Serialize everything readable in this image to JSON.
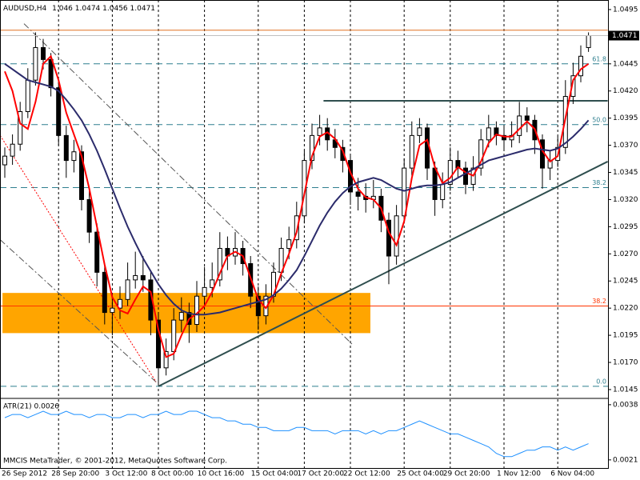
{
  "chart_data": {
    "type": "candlestick",
    "title": "AUDUSD,H4",
    "footer": "MMCIS MetaTrader, © 2001-2012, MetaQuotes Software Corp.",
    "categories": [
      "26 Sep 2012",
      null,
      null,
      null,
      null,
      null,
      null,
      "28 Sep 20:00",
      null,
      null,
      null,
      null,
      null,
      null,
      "3 Oct 12:00",
      null,
      null,
      null,
      null,
      null,
      "8 Oct 00:00",
      null,
      null,
      null,
      null,
      null,
      "10 Oct 16:00",
      null,
      null,
      null,
      null,
      null,
      null,
      "15 Oct 04:00",
      null,
      null,
      null,
      null,
      null,
      "17 Oct 20:00",
      null,
      null,
      null,
      null,
      null,
      "22 Oct 12:00",
      null,
      null,
      null,
      null,
      null,
      null,
      "25 Oct 04:00",
      null,
      null,
      null,
      null,
      null,
      "29 Oct 20:00",
      null,
      null,
      null,
      null,
      null,
      null,
      "1 Nov 12:00",
      null,
      null,
      null,
      null,
      null,
      null,
      "6 Nov 04:00",
      null,
      null,
      null,
      null
    ],
    "open": [
      1.0352,
      1.036,
      1.0371,
      1.0401,
      1.043,
      1.046,
      1.0449,
      1.0423,
      1.0379,
      1.0356,
      1.0364,
      1.032,
      1.029,
      1.0253,
      1.0216,
      1.022,
      1.0228,
      1.0246,
      1.025,
      1.0246,
      1.0209,
      1.0165,
      1.018,
      1.0209,
      1.0216,
      1.0205,
      1.0231,
      1.0239,
      1.0246,
      1.0275,
      1.0268,
      1.0275,
      1.0261,
      1.0231,
      1.0213,
      1.0231,
      1.0253,
      1.0275,
      1.0283,
      1.0305,
      1.0356,
      1.0379,
      1.0386,
      1.0375,
      1.0368,
      1.0356,
      1.0327,
      1.0323,
      1.032,
      1.0323,
      1.0301,
      1.0268,
      1.0305,
      1.0349,
      1.0379,
      1.0386,
      1.0349,
      1.032,
      1.0334,
      1.0356,
      1.0349,
      1.0334,
      1.0349,
      1.0375,
      1.0386,
      1.0379,
      1.0375,
      1.0379,
      1.0397,
      1.0393,
      1.0375,
      1.0349,
      1.0356,
      1.0368,
      1.0415,
      1.0434,
      1.046
    ],
    "high": [
      1.0368,
      1.038,
      1.041,
      1.0441,
      1.0474,
      1.0468,
      1.0455,
      1.043,
      1.0388,
      1.0375,
      1.037,
      1.0328,
      1.0298,
      1.026,
      1.0232,
      1.024,
      1.0262,
      1.0272,
      1.0268,
      1.0255,
      1.0215,
      1.0192,
      1.022,
      1.023,
      1.0225,
      1.0245,
      1.0258,
      1.0262,
      1.029,
      1.0286,
      1.029,
      1.0282,
      1.0268,
      1.024,
      1.0242,
      1.0262,
      1.0285,
      1.0295,
      1.0318,
      1.0365,
      1.039,
      1.0398,
      1.0395,
      1.0385,
      1.0375,
      1.0362,
      1.034,
      1.0335,
      1.0338,
      1.033,
      1.0308,
      1.0315,
      1.0358,
      1.0392,
      1.0395,
      1.039,
      1.0355,
      1.0345,
      1.0368,
      1.0365,
      1.0355,
      1.036,
      1.0385,
      1.0398,
      1.0392,
      1.0388,
      1.0392,
      1.041,
      1.0405,
      1.0398,
      1.038,
      1.0365,
      1.0378,
      1.043,
      1.0446,
      1.0462,
      1.0474
    ],
    "low": [
      1.034,
      1.0352,
      1.0365,
      1.0395,
      1.0425,
      1.044,
      1.0415,
      1.037,
      1.034,
      1.0345,
      1.031,
      1.028,
      1.024,
      1.0205,
      1.0195,
      1.021,
      1.0222,
      1.0238,
      1.0235,
      1.0195,
      1.015,
      1.0158,
      1.0172,
      1.0198,
      1.0188,
      1.0198,
      1.0222,
      1.023,
      1.024,
      1.0255,
      1.026,
      1.025,
      1.022,
      1.02,
      1.0205,
      1.0225,
      1.0245,
      1.0265,
      1.0275,
      1.0298,
      1.0348,
      1.037,
      1.0365,
      1.0358,
      1.0345,
      1.0315,
      1.031,
      1.0308,
      1.0312,
      1.029,
      1.0242,
      1.026,
      1.0298,
      1.0342,
      1.0372,
      1.0338,
      1.0305,
      1.0312,
      1.0328,
      1.034,
      1.0325,
      1.0328,
      1.0342,
      1.0368,
      1.037,
      1.0365,
      1.0368,
      1.0372,
      1.0382,
      1.0362,
      1.033,
      1.0338,
      1.035,
      1.0362,
      1.0408,
      1.0428,
      1.0456
    ],
    "close": [
      1.036,
      1.0371,
      1.0401,
      1.043,
      1.046,
      1.0449,
      1.0423,
      1.0379,
      1.0356,
      1.0364,
      1.032,
      1.029,
      1.0253,
      1.0216,
      1.022,
      1.0228,
      1.0246,
      1.025,
      1.0246,
      1.0209,
      1.0165,
      1.018,
      1.0209,
      1.0216,
      1.0205,
      1.0231,
      1.0239,
      1.0246,
      1.0275,
      1.0268,
      1.0275,
      1.0261,
      1.0231,
      1.0213,
      1.0231,
      1.0253,
      1.0275,
      1.0283,
      1.0305,
      1.0356,
      1.0379,
      1.0386,
      1.0375,
      1.0368,
      1.0356,
      1.0327,
      1.0323,
      1.032,
      1.0323,
      1.0301,
      1.0268,
      1.0305,
      1.0349,
      1.0379,
      1.0386,
      1.0349,
      1.032,
      1.0334,
      1.0356,
      1.0349,
      1.0334,
      1.0349,
      1.0375,
      1.0386,
      1.0379,
      1.0375,
      1.0379,
      1.0397,
      1.0393,
      1.0375,
      1.0349,
      1.0356,
      1.0368,
      1.0415,
      1.0434,
      1.0452,
      1.0471
    ],
    "up_color": "#ffffff",
    "down_color": "#000000",
    "candle_color": "#000000",
    "overlays": [
      {
        "color": "#ff0000",
        "values": [
          1.0438,
          1.042,
          1.039,
          1.0385,
          1.041,
          1.0445,
          1.0452,
          1.043,
          1.04,
          1.038,
          1.036,
          1.033,
          1.0295,
          1.026,
          1.023,
          1.0218,
          1.0215,
          1.0228,
          1.024,
          1.0235,
          1.02,
          1.0175,
          1.0178,
          1.0195,
          1.021,
          1.0215,
          1.0222,
          1.0235,
          1.0252,
          1.0268,
          1.0272,
          1.0268,
          1.0248,
          1.0228,
          1.022,
          1.0232,
          1.0252,
          1.027,
          1.029,
          1.0325,
          1.036,
          1.0378,
          1.0382,
          1.0376,
          1.0365,
          1.0345,
          1.033,
          1.0322,
          1.032,
          1.0312,
          1.029,
          1.0278,
          1.03,
          1.034,
          1.037,
          1.0375,
          1.035,
          1.0335,
          1.034,
          1.035,
          1.0345,
          1.0342,
          1.0355,
          1.0372,
          1.038,
          1.0378,
          1.0378,
          1.0385,
          1.0392,
          1.0385,
          1.0365,
          1.0355,
          1.036,
          1.0395,
          1.043,
          1.044,
          1.0445
        ]
      },
      {
        "color": "#2b2b6b",
        "values": [
          1.0445,
          1.044,
          1.0435,
          1.043,
          1.0428,
          1.0426,
          1.0424,
          1.042,
          1.0412,
          1.0403,
          1.0393,
          1.038,
          1.0365,
          1.0348,
          1.033,
          1.0312,
          1.0295,
          1.028,
          1.0266,
          1.0254,
          1.0242,
          1.0232,
          1.0224,
          1.0218,
          1.0215,
          1.0214,
          1.0214,
          1.0215,
          1.0216,
          1.0218,
          1.022,
          1.0222,
          1.0224,
          1.0226,
          1.0228,
          1.0232,
          1.0238,
          1.0246,
          1.0255,
          1.0268,
          1.0282,
          1.0296,
          1.0308,
          1.0318,
          1.0326,
          1.0332,
          1.0336,
          1.0338,
          1.034,
          1.0338,
          1.0334,
          1.033,
          1.0328,
          1.033,
          1.0332,
          1.0333,
          1.0333,
          1.0334,
          1.0336,
          1.034,
          1.0344,
          1.0348,
          1.0352,
          1.0356,
          1.0358,
          1.036,
          1.0362,
          1.0364,
          1.0366,
          1.0367,
          1.0366,
          1.0365,
          1.0367,
          1.0372,
          1.0378,
          1.0385,
          1.0393
        ]
      }
    ],
    "ylim": [
      1.01376,
      1.05038
    ],
    "yticks": [
      1.0145,
      {
        "value": 1.017,
        "label": "1.0170"
      },
      1.0195,
      {
        "value": 1.022,
        "label": "1.0220"
      },
      1.0245,
      {
        "value": 1.027,
        "label": "1.0270"
      },
      1.0295,
      {
        "value": 1.032,
        "label": "1.0320"
      },
      1.0345,
      {
        "value": 1.037,
        "label": "1.0370"
      },
      1.0395,
      {
        "value": 1.042,
        "label": "1.0420"
      },
      1.0445,
      {
        "value": 1.047,
        "label": "1.0470"
      },
      1.0495
    ],
    "levels": [
      {
        "value": 1.0445,
        "label": "61.8",
        "color": "#2f7f8f",
        "style": "dash"
      },
      {
        "value": 1.0389,
        "label": "50.0",
        "color": "#2f7f8f",
        "style": "dash"
      },
      {
        "value": 1.0331,
        "label": "38.2",
        "color": "#2f7f8f",
        "style": "dash"
      },
      {
        "value": 1.0148,
        "label": "0.0",
        "color": "#2f7f8f",
        "style": "dash"
      },
      {
        "value": 1.0222,
        "label": "38.2",
        "color": "#ff3300",
        "style": "solid"
      }
    ],
    "rectangle": {
      "x": [
        -0.3,
        47.6
      ],
      "y": [
        1.0197,
        1.0234
      ],
      "color": "#ffa500"
    },
    "lines": [
      {
        "x": [
          20,
          78.5
        ],
        "y": [
          1.0148,
          1.0355
        ],
        "color": "#2f4f4f",
        "style": "solid",
        "width": 2
      },
      {
        "x": [
          41.5,
          78.5
        ],
        "y": [
          1.0411,
          1.0411
        ],
        "color": "#2f4f4f",
        "style": "solid",
        "width": 2
      },
      {
        "x": [
          2.5,
          45.2
        ],
        "y": [
          1.0482,
          1.0187
        ],
        "color": "#555555",
        "style": "dashdot",
        "width": 1
      },
      {
        "x": [
          -0.6,
          19.7
        ],
        "y": [
          1.0283,
          1.0152
        ],
        "color": "#555555",
        "style": "dashdot",
        "width": 1
      },
      {
        "x": [
          -0.6,
          19.7
        ],
        "y": [
          1.0379,
          1.0152
        ],
        "color": "#ff0000",
        "style": "dot",
        "width": 1
      },
      {
        "x": [
          -0.6,
          78.5
        ],
        "y": [
          1.0476,
          1.0476
        ],
        "color": "#e07020",
        "style": "solid",
        "width": 1
      }
    ],
    "atr": {
      "label": "ATR(21) 0.0026",
      "color": "#1e90ff",
      "ylim": [
        0.00185,
        0.00397
      ],
      "yticks": [
        0.0038,
        0.0021
      ],
      "values": [
        0.0034,
        0.0035,
        0.0035,
        0.0034,
        0.0035,
        0.0036,
        0.0035,
        0.0035,
        0.0036,
        0.0035,
        0.0035,
        0.0034,
        0.0035,
        0.0035,
        0.0034,
        0.0034,
        0.0035,
        0.0035,
        0.0034,
        0.0035,
        0.0035,
        0.0036,
        0.0035,
        0.0035,
        0.0036,
        0.0036,
        0.0035,
        0.0034,
        0.0034,
        0.0033,
        0.0033,
        0.0032,
        0.0032,
        0.0031,
        0.0031,
        0.003,
        0.003,
        0.003,
        0.0031,
        0.0031,
        0.003,
        0.003,
        0.003,
        0.0029,
        0.003,
        0.003,
        0.003,
        0.0029,
        0.003,
        0.0029,
        0.003,
        0.003,
        0.0031,
        0.0032,
        0.0033,
        0.0032,
        0.0031,
        0.003,
        0.0029,
        0.0029,
        0.0028,
        0.0027,
        0.0026,
        0.0025,
        0.0023,
        0.0022,
        0.0022,
        0.0023,
        0.0024,
        0.0024,
        0.0025,
        0.0025,
        0.0024,
        0.0025,
        0.0024,
        0.0025,
        0.0026
      ]
    }
  }
}
